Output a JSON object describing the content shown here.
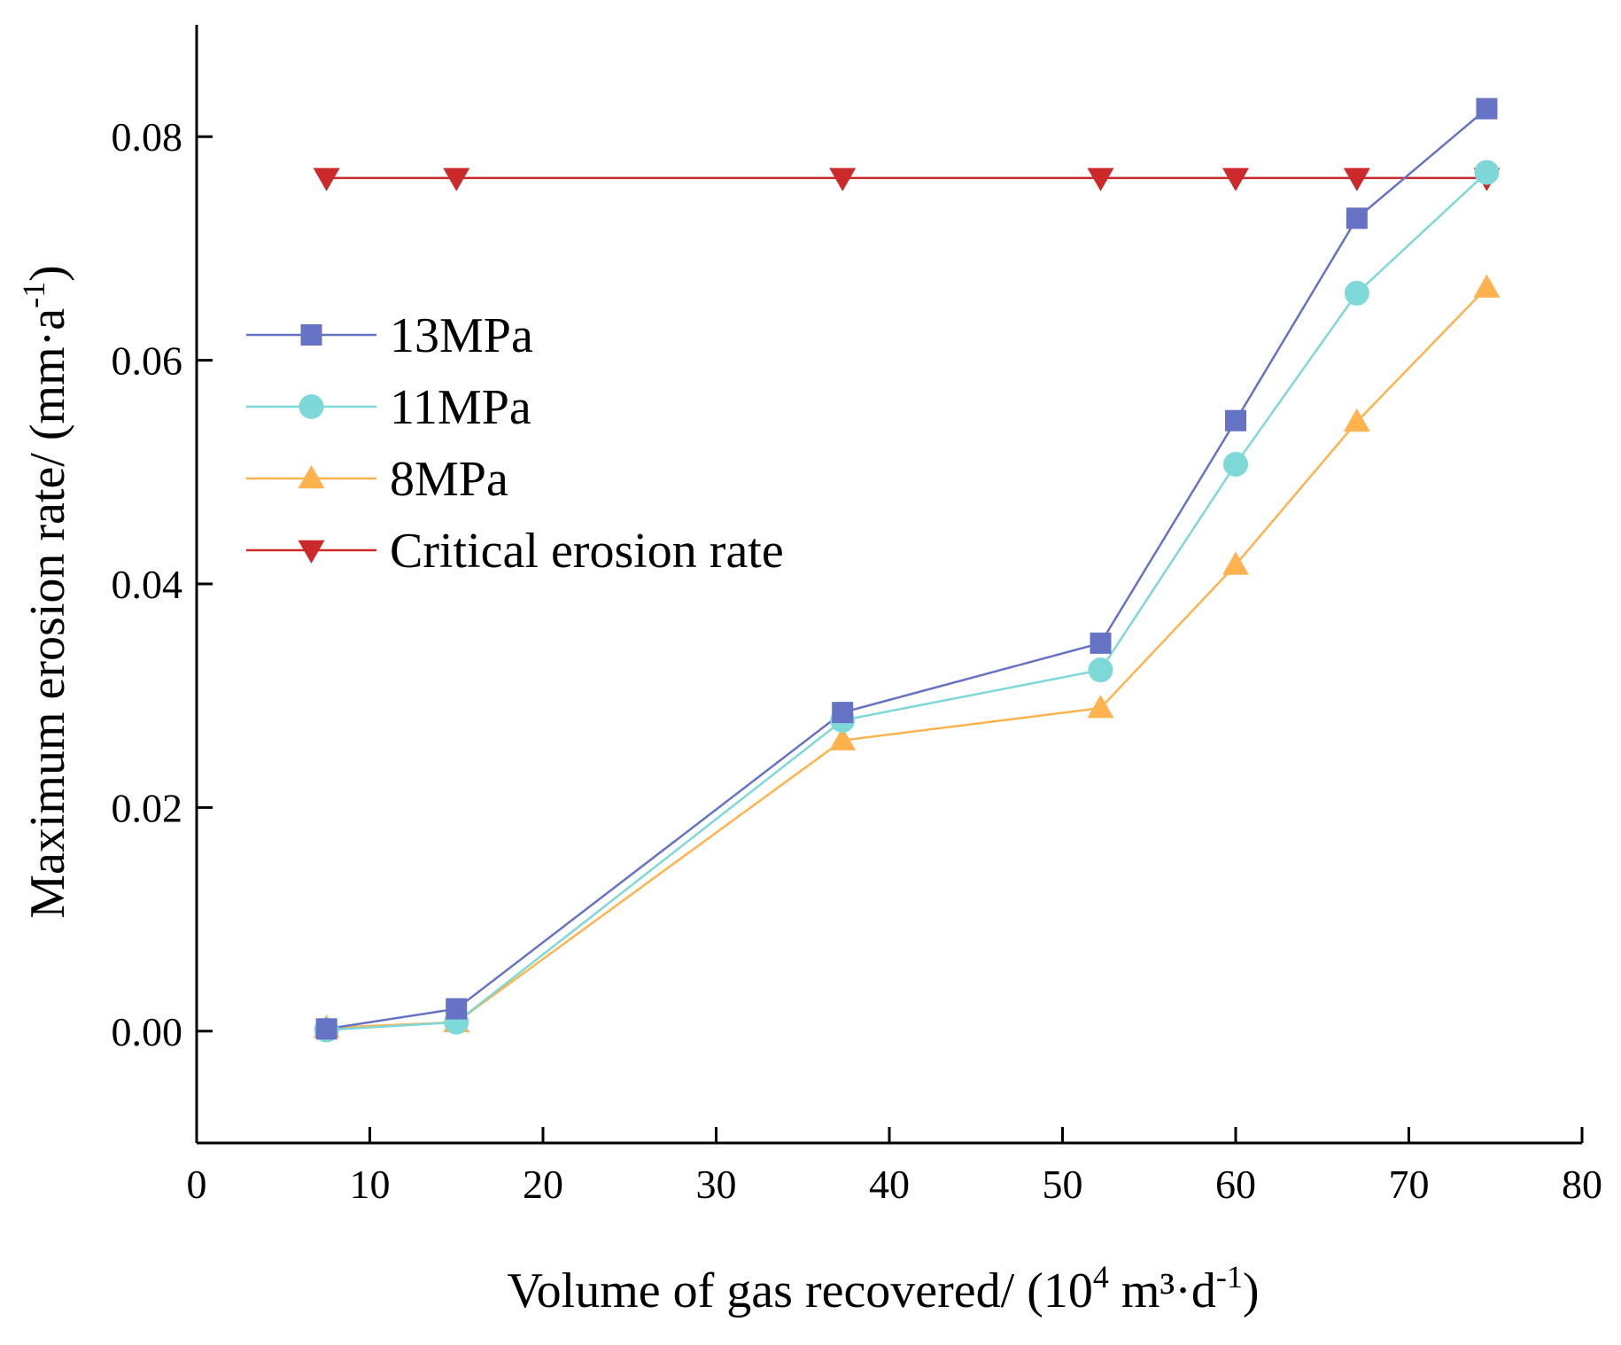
{
  "chart_data": {
    "type": "line",
    "title": "",
    "xlabel": {
      "main": "Volume of gas recovered/ (10",
      "sup1": "4",
      "mid": " m³·d",
      "sup2": "-1",
      "end": ")"
    },
    "ylabel": {
      "main": "Maximum erosion rate/ (mm·a",
      "sup": "-1",
      "end": ")"
    },
    "xlim": [
      0,
      80
    ],
    "ylim": [
      -0.01,
      0.09
    ],
    "xticks": [
      0,
      10,
      20,
      30,
      40,
      50,
      60,
      70,
      80
    ],
    "xtick_labels": [
      "0",
      "10",
      "20",
      "30",
      "40",
      "50",
      "60",
      "70",
      "80"
    ],
    "yticks": [
      0.0,
      0.02,
      0.04,
      0.06,
      0.08
    ],
    "ytick_labels": [
      "0.00",
      "0.02",
      "0.04",
      "0.06",
      "0.08"
    ],
    "x": [
      7.5,
      15,
      37.3,
      52.2,
      60,
      67,
      74.5
    ],
    "legend_position": "center-left",
    "series": [
      {
        "name": "13MPa",
        "marker": "square",
        "color": "#6672c4",
        "values": [
          0.0002,
          0.002,
          0.0285,
          0.0347,
          0.0546,
          0.0727,
          0.0825
        ]
      },
      {
        "name": "11MPa",
        "marker": "circle",
        "color": "#7fd8d8",
        "values": [
          0.0001,
          0.0008,
          0.0278,
          0.0323,
          0.0507,
          0.066,
          0.0768
        ]
      },
      {
        "name": "8MPa",
        "marker": "triangle-up",
        "color": "#ffb24d",
        "values": [
          0.0003,
          0.0008,
          0.026,
          0.0289,
          0.0417,
          0.0545,
          0.0665
        ]
      },
      {
        "name": "Critical erosion rate",
        "marker": "triangle-down",
        "color": "#cc2a2a",
        "values": [
          0.0763,
          0.0763,
          0.0763,
          0.0763,
          0.0763,
          0.0763,
          0.0763
        ]
      }
    ]
  }
}
